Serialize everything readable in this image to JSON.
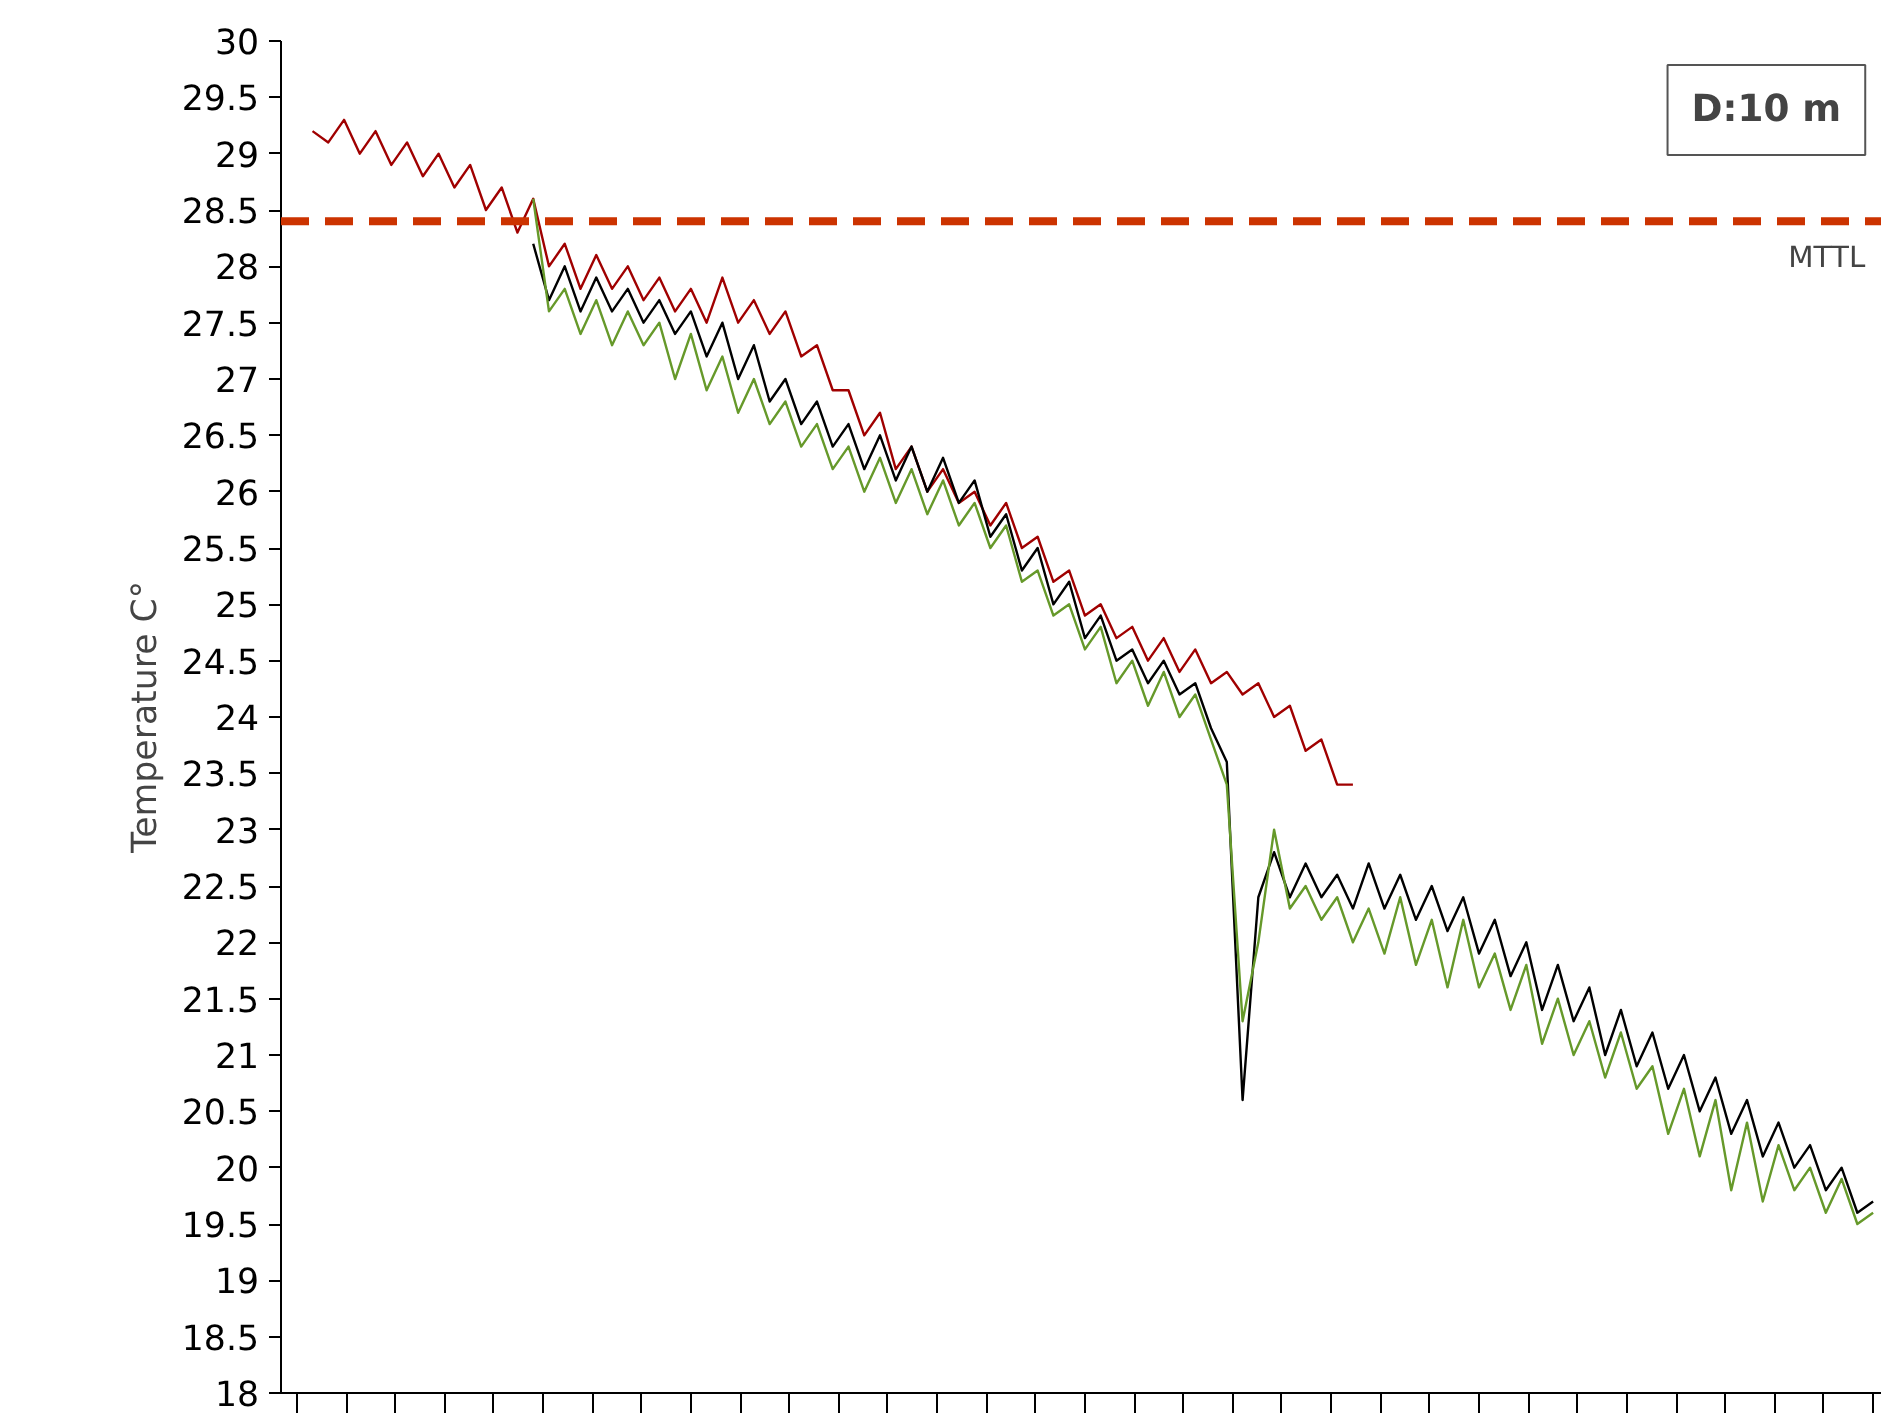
{
  "chart_data": {
    "type": "line",
    "ylabel": "Temperature C°",
    "annotations": [
      "D:10 m"
    ],
    "tick_labels": "y",
    "grid": false,
    "line_style": "solid",
    "marker": "none",
    "categories": [
      null,
      null,
      null,
      null,
      null,
      null,
      null,
      null,
      null,
      null,
      null,
      null,
      null,
      null,
      null,
      null,
      null,
      null,
      null,
      null,
      null,
      null,
      null,
      null,
      null,
      null,
      null,
      null,
      null,
      null,
      null,
      null,
      null,
      null,
      null,
      null,
      null,
      null,
      null,
      null,
      null,
      null,
      null,
      null,
      null,
      null,
      null,
      null,
      null,
      null,
      null,
      null,
      null,
      null,
      null,
      null,
      null,
      null,
      null,
      null,
      null,
      null,
      null,
      null,
      null,
      null,
      null,
      null,
      null,
      null,
      null,
      null,
      null,
      null,
      null,
      null,
      null,
      null,
      null,
      null,
      null,
      null,
      null,
      null,
      null,
      null,
      null,
      null,
      null,
      null,
      null,
      null,
      null,
      null,
      null,
      null,
      null,
      null,
      null,
      null
    ],
    "ylim": [
      18,
      30
    ],
    "yticks": [
      18,
      18.5,
      19,
      19.5,
      20,
      20.5,
      21,
      21.5,
      22,
      22.5,
      23,
      23.5,
      24,
      24.5,
      25,
      25.5,
      26,
      26.5,
      27,
      27.5,
      28,
      28.5,
      29,
      29.5,
      30
    ],
    "ref_lines": [
      {
        "axis": "y",
        "value": 28.4,
        "label": "MTTL",
        "color": "#cc3300",
        "line_style": "dashed"
      }
    ],
    "series": [
      {
        "color": "#a00000",
        "values": [
          29.2,
          29.1,
          29.3,
          29.0,
          29.2,
          28.9,
          29.1,
          28.8,
          29.0,
          28.7,
          28.9,
          28.5,
          28.7,
          28.3,
          28.6,
          28.0,
          28.2,
          27.8,
          28.1,
          27.8,
          28.0,
          27.7,
          27.9,
          27.6,
          27.8,
          27.5,
          27.9,
          27.5,
          27.7,
          27.4,
          27.6,
          27.2,
          27.3,
          26.9,
          26.9,
          26.5,
          26.7,
          26.2,
          26.4,
          26.0,
          26.2,
          25.9,
          26.0,
          25.7,
          25.9,
          25.5,
          25.6,
          25.2,
          25.3,
          24.9,
          25.0,
          24.7,
          24.8,
          24.5,
          24.7,
          24.4,
          24.6,
          24.3,
          24.4,
          24.2,
          24.3,
          24.0,
          24.1,
          23.7,
          23.8,
          23.4,
          23.4,
          null,
          null,
          null,
          null,
          null,
          null,
          null,
          null,
          null,
          null,
          null,
          null,
          null,
          null,
          null,
          null,
          null,
          null,
          null,
          null,
          null,
          null,
          null,
          null,
          null,
          null,
          null,
          null,
          null,
          null,
          null,
          null,
          null
        ]
      },
      {
        "color": "#000000",
        "values": [
          null,
          null,
          null,
          null,
          null,
          null,
          null,
          null,
          null,
          null,
          null,
          null,
          null,
          null,
          28.2,
          27.7,
          28.0,
          27.6,
          27.9,
          27.6,
          27.8,
          27.5,
          27.7,
          27.4,
          27.6,
          27.2,
          27.5,
          27.0,
          27.3,
          26.8,
          27.0,
          26.6,
          26.8,
          26.4,
          26.6,
          26.2,
          26.5,
          26.1,
          26.4,
          26.0,
          26.3,
          25.9,
          26.1,
          25.6,
          25.8,
          25.3,
          25.5,
          25.0,
          25.2,
          24.7,
          24.9,
          24.5,
          24.6,
          24.3,
          24.5,
          24.2,
          24.3,
          23.9,
          23.6,
          20.6,
          22.4,
          22.8,
          22.4,
          22.7,
          22.4,
          22.6,
          22.3,
          22.7,
          22.3,
          22.6,
          22.2,
          22.5,
          22.1,
          22.4,
          21.9,
          22.2,
          21.7,
          22.0,
          21.4,
          21.8,
          21.3,
          21.6,
          21.0,
          21.4,
          20.9,
          21.2,
          20.7,
          21.0,
          20.5,
          20.8,
          20.3,
          20.6,
          20.1,
          20.4,
          20.0,
          20.2,
          19.8,
          20.0,
          19.6,
          19.7
        ]
      },
      {
        "color": "#66992a",
        "values": [
          null,
          null,
          null,
          null,
          null,
          null,
          null,
          null,
          null,
          null,
          null,
          null,
          null,
          null,
          28.6,
          27.6,
          27.8,
          27.4,
          27.7,
          27.3,
          27.6,
          27.3,
          27.5,
          27.0,
          27.4,
          26.9,
          27.2,
          26.7,
          27.0,
          26.6,
          26.8,
          26.4,
          26.6,
          26.2,
          26.4,
          26.0,
          26.3,
          25.9,
          26.2,
          25.8,
          26.1,
          25.7,
          25.9,
          25.5,
          25.7,
          25.2,
          25.3,
          24.9,
          25.0,
          24.6,
          24.8,
          24.3,
          24.5,
          24.1,
          24.4,
          24.0,
          24.2,
          23.8,
          23.4,
          21.3,
          22.0,
          23.0,
          22.3,
          22.5,
          22.2,
          22.4,
          22.0,
          22.3,
          21.9,
          22.4,
          21.8,
          22.2,
          21.6,
          22.2,
          21.6,
          21.9,
          21.4,
          21.8,
          21.1,
          21.5,
          21.0,
          21.3,
          20.8,
          21.2,
          20.7,
          20.9,
          20.3,
          20.7,
          20.1,
          20.6,
          19.8,
          20.4,
          19.7,
          20.2,
          19.8,
          20.0,
          19.6,
          19.9,
          19.5,
          19.6
        ]
      }
    ]
  }
}
